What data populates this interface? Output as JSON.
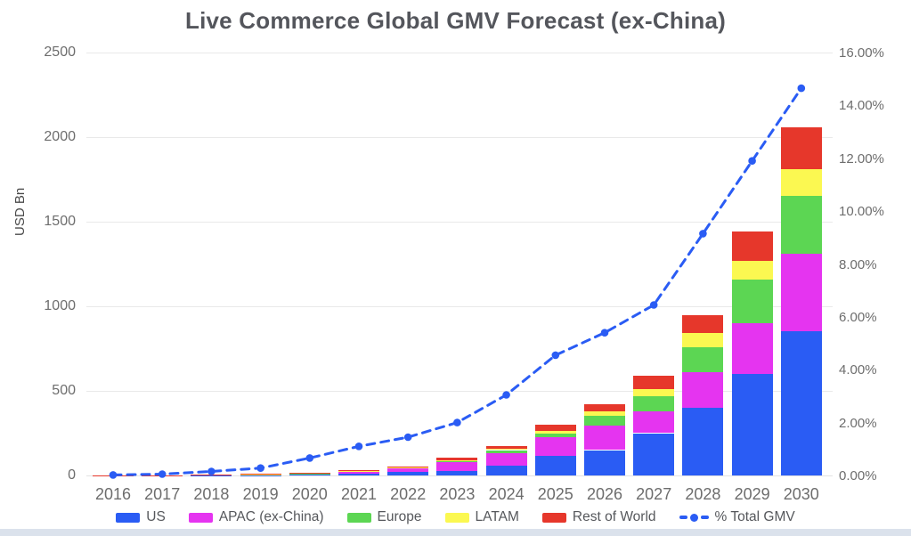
{
  "title": "Live Commerce Global GMV Forecast (ex-China)",
  "chart_data": {
    "type": "bar",
    "stacked": true,
    "title": "Live Commerce Global GMV Forecast (ex-China)",
    "ylabel": "USD Bn",
    "categories": [
      "2016",
      "2017",
      "2018",
      "2019",
      "2020",
      "2021",
      "2022",
      "2023",
      "2024",
      "2025",
      "2026",
      "2027",
      "2028",
      "2029",
      "2030"
    ],
    "series": [
      {
        "name": "US",
        "color": "#2a5cf4",
        "values": [
          0.2,
          0.5,
          1,
          2,
          4,
          10,
          22,
          28,
          60,
          115,
          150,
          250,
          400,
          600,
          855
        ]
      },
      {
        "name": "APAC (ex-China)",
        "color": "#e534f0",
        "values": [
          0.5,
          1,
          2.5,
          4.5,
          8,
          14,
          22,
          50,
          72,
          110,
          145,
          130,
          210,
          300,
          455
        ]
      },
      {
        "name": "Europe",
        "color": "#5cd653",
        "values": [
          0.1,
          0.2,
          0.4,
          0.6,
          1,
          2,
          4,
          9,
          18,
          22,
          58,
          90,
          150,
          260,
          345
        ]
      },
      {
        "name": "LATAM",
        "color": "#fbf851",
        "values": [
          0.05,
          0.1,
          0.2,
          0.3,
          0.5,
          1,
          2,
          4,
          7,
          17,
          26,
          40,
          80,
          110,
          155
        ]
      },
      {
        "name": "Rest of World",
        "color": "#e6372b",
        "values": [
          0.15,
          0.2,
          0.4,
          0.6,
          1.5,
          3,
          5,
          14,
          15,
          36,
          40,
          80,
          110,
          170,
          250
        ]
      }
    ],
    "line_series": {
      "name": "% Total GMV",
      "color": "#2a5cf4",
      "style": "dashed",
      "values": [
        0.02,
        0.05,
        0.15,
        0.28,
        0.66,
        1.1,
        1.45,
        2.0,
        3.05,
        4.55,
        5.4,
        6.45,
        9.15,
        11.9,
        14.65
      ]
    },
    "y_left": {
      "min": 0,
      "max": 2500,
      "step": 500,
      "ticks": [
        "2500",
        "2000",
        "1500",
        "1000",
        "500",
        "0"
      ]
    },
    "y_right": {
      "min": 0,
      "max": 16,
      "step": 2,
      "ticks": [
        "16.00%",
        "14.00%",
        "12.00%",
        "10.00%",
        "8.00%",
        "6.00%",
        "4.00%",
        "2.00%",
        "0.00%"
      ]
    },
    "grid": true,
    "legend_position": "bottom",
    "legend_entries": [
      "US",
      "APAC (ex-China)",
      "Europe",
      "LATAM",
      "Rest of World",
      "% Total GMV"
    ]
  },
  "colors": {
    "title_text": "#54565c",
    "axis_text": "#6d6d6d",
    "gridline": "#e9e9e9",
    "bottom_strip": "#dbe2ec",
    "line": "#2a5cf4"
  }
}
